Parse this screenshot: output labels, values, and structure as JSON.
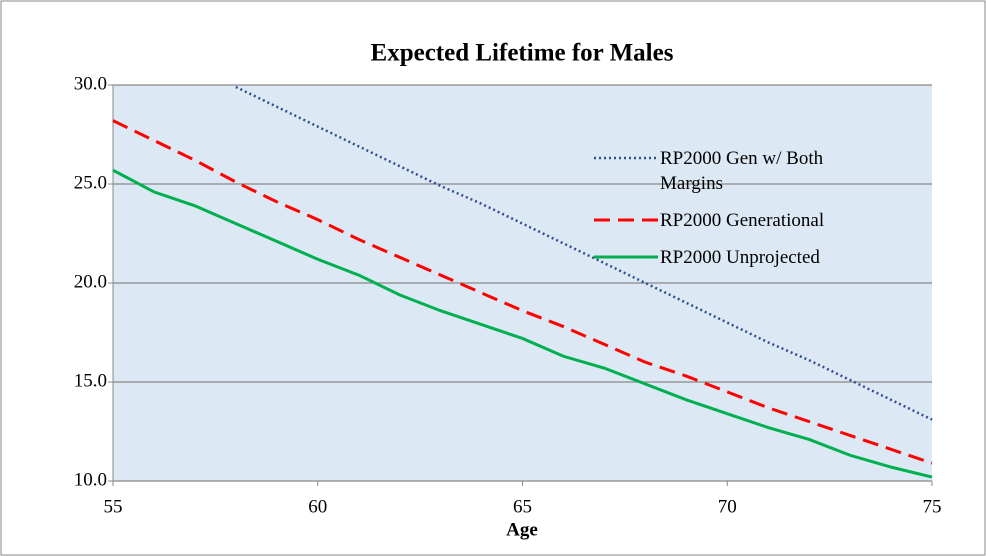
{
  "chart_data": {
    "type": "line",
    "title": "Expected Lifetime for Males",
    "x_label": "Age",
    "x": [
      55,
      56,
      57,
      58,
      59,
      60,
      61,
      62,
      63,
      64,
      65,
      66,
      67,
      68,
      69,
      70,
      71,
      72,
      73,
      74,
      75
    ],
    "series": [
      {
        "name": "RP2000 Gen w/ Both Margins",
        "color": "#2f4f8f",
        "dash": "dotted",
        "values": [
          null,
          null,
          null,
          29.9,
          28.9,
          27.9,
          26.9,
          25.9,
          24.9,
          24.0,
          23.0,
          22.0,
          21.0,
          20.0,
          19.0,
          18.0,
          17.0,
          16.1,
          15.1,
          14.1,
          13.1
        ]
      },
      {
        "name": "RP2000 Generational",
        "color": "#ff0000",
        "dash": "dashed",
        "values": [
          28.2,
          27.2,
          26.2,
          25.1,
          24.1,
          23.2,
          22.2,
          21.3,
          20.4,
          19.5,
          18.6,
          17.8,
          16.9,
          16.0,
          15.3,
          14.5,
          13.7,
          13.0,
          12.3,
          11.6,
          10.9
        ]
      },
      {
        "name": "RP2000 Unprojected",
        "color": "#00b050",
        "dash": "solid",
        "values": [
          25.7,
          24.6,
          23.9,
          23.0,
          22.1,
          21.2,
          20.4,
          19.4,
          18.6,
          17.9,
          17.2,
          16.3,
          15.7,
          14.9,
          14.1,
          13.4,
          12.7,
          12.1,
          11.3,
          10.7,
          10.2
        ]
      }
    ],
    "xlim": [
      55,
      75
    ],
    "xticks": [
      55,
      60,
      65,
      70,
      75
    ],
    "ylim": [
      10,
      30
    ],
    "yticks": [
      {
        "value": 10,
        "label": "10.0"
      },
      {
        "value": 15,
        "label": "15.0"
      },
      {
        "value": 20,
        "label": "20.0"
      },
      {
        "value": 25,
        "label": "25.0"
      },
      {
        "value": 30,
        "label": "30.0"
      }
    ],
    "grid": true
  }
}
